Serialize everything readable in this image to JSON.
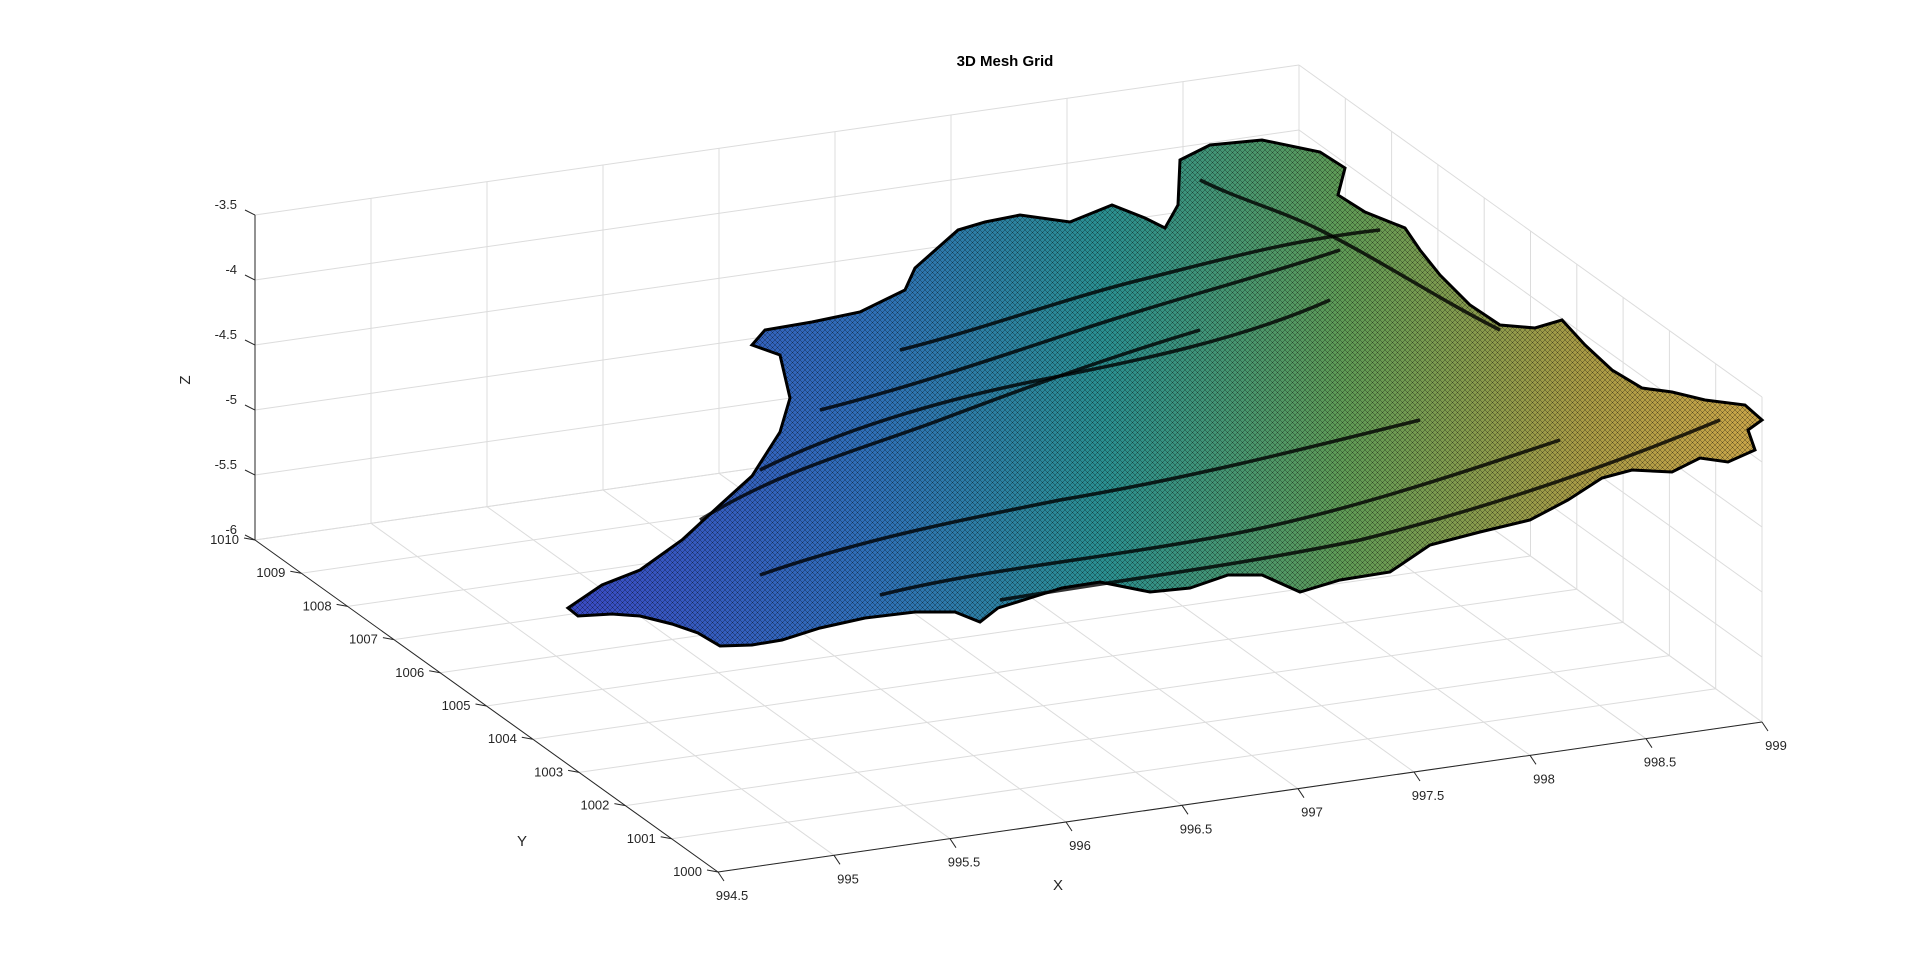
{
  "chart_data": {
    "type": "surface",
    "title": "3D Mesh Grid",
    "xlabel": "X",
    "ylabel": "Y",
    "zlabel": "Z",
    "xlim": [
      994.5,
      999
    ],
    "ylim": [
      1000,
      1010
    ],
    "zlim": [
      -6,
      -3.5
    ],
    "x_ticks": [
      "994.5",
      "995",
      "995.5",
      "996",
      "996.5",
      "997",
      "997.5",
      "998",
      "998.5",
      "999"
    ],
    "y_ticks": [
      "1000",
      "1001",
      "1002",
      "1003",
      "1004",
      "1005",
      "1006",
      "1007",
      "1008",
      "1009",
      "1010"
    ],
    "z_ticks": [
      "-6",
      "-5.5",
      "-5",
      "-4.5",
      "-4",
      "-3.5"
    ],
    "grid": true,
    "colormap": "parula",
    "edge_color": "#000000",
    "surface_extent": {
      "x_range": [
        995.0,
        998.9
      ],
      "y_range": [
        1001.0,
        1009.6
      ],
      "z_range": [
        -5.9,
        -3.7
      ],
      "highest_region": {
        "x": 996.5,
        "y": 1009.3
      },
      "lowest_region": {
        "x": 995.2,
        "y": 1006.5
      }
    }
  },
  "colors": {
    "axis": "#262626",
    "grid": "#dcdcdc",
    "background": "#ffffff",
    "low": "#3a3fc4",
    "mid": "#2a9a8c",
    "high": "#e8c24a"
  }
}
